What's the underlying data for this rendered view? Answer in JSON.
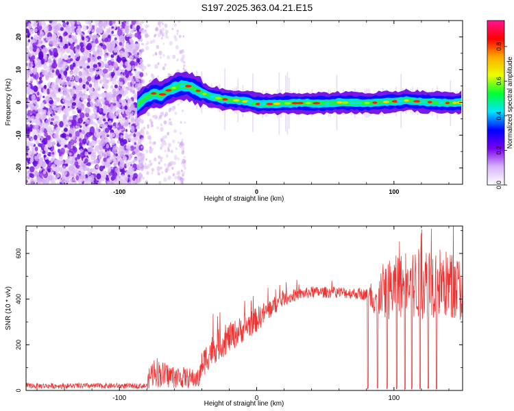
{
  "title": "S197.2025.363.04.21.E15",
  "chart_data": [
    {
      "type": "heatmap",
      "name": "spectrogram",
      "xlabel": "Height of straight line (km)",
      "ylabel": "Frequency (Hz)",
      "xlim": [
        -168,
        150
      ],
      "ylim": [
        -25,
        25
      ],
      "xticks": [
        -100,
        0,
        100
      ],
      "xtick_labels": [
        "-100",
        "0",
        "100"
      ],
      "yticks": [
        -20,
        -10,
        0,
        10,
        20
      ],
      "ytick_labels": [
        "-20",
        "-10",
        "0",
        "10",
        "20"
      ],
      "ridge": {
        "x": [
          -87,
          -82,
          -78,
          -74,
          -70,
          -65,
          -60,
          -55,
          -50,
          -45,
          -40,
          -35,
          -30,
          -25,
          -20,
          -15,
          -10,
          -5,
          0,
          10,
          20,
          30,
          40,
          50,
          60,
          70,
          80,
          90,
          100,
          110,
          120,
          130,
          140,
          150
        ],
        "y": [
          -1,
          1,
          2,
          3,
          2,
          3.5,
          4.5,
          5,
          5,
          4,
          3,
          2,
          1.5,
          1,
          0.8,
          0.6,
          0.4,
          0.1,
          -0.5,
          -0.5,
          -0.3,
          -0.2,
          -0.2,
          -0.3,
          0,
          -0.2,
          -0.2,
          0,
          0.3,
          0.6,
          0.2,
          0,
          -0.2,
          0
        ]
      },
      "noise_region": [
        -168,
        -85
      ],
      "colorbar": {
        "label": "Normalized spectral amplitude",
        "ticks": [
          0.0,
          0.2,
          0.4,
          0.6,
          0.8
        ],
        "tick_labels": [
          "0.0",
          "0.2",
          "0.4",
          "0.6",
          "0.8"
        ],
        "range": [
          0,
          0.95
        ],
        "colors": [
          "#ffffff",
          "#d8b4f8",
          "#7a00f0",
          "#0000ff",
          "#00e5ff",
          "#00ff33",
          "#eaff00",
          "#ffaa00",
          "#ff0000",
          "#ff1493"
        ]
      }
    },
    {
      "type": "line",
      "name": "snr",
      "xlabel": "Height of straight line (km)",
      "ylabel": "SNR (10 * v/v)",
      "xlim": [
        -168,
        150
      ],
      "ylim": [
        0,
        720
      ],
      "xticks": [
        -100,
        0,
        100
      ],
      "xtick_labels": [
        "-100",
        "0",
        "100"
      ],
      "yticks": [
        0,
        200,
        400,
        600
      ],
      "ytick_labels": [
        "0",
        "200",
        "400",
        "600"
      ],
      "color": "#ee3333",
      "envelope": {
        "x": [
          -168,
          -80,
          -78,
          -74,
          -70,
          -60,
          -50,
          -42,
          -40,
          -35,
          -30,
          -20,
          -10,
          0,
          10,
          20,
          30,
          40,
          50,
          60,
          70,
          80,
          83,
          90,
          100,
          110,
          120,
          130,
          140,
          150
        ],
        "y": [
          20,
          20,
          60,
          90,
          70,
          60,
          55,
          50,
          110,
          160,
          190,
          230,
          270,
          310,
          360,
          400,
          420,
          430,
          430,
          430,
          425,
          420,
          400,
          430,
          450,
          460,
          470,
          480,
          460,
          440
        ]
      },
      "spread": [
        12,
        12,
        55,
        70,
        60,
        50,
        45,
        40,
        60,
        70,
        70,
        65,
        60,
        55,
        45,
        30,
        25,
        25,
        25,
        25,
        25,
        25,
        60,
        120,
        140,
        150,
        160,
        160,
        150,
        140
      ],
      "dropouts_x": [
        81,
        88,
        95,
        102,
        108,
        113,
        119,
        125,
        131
      ]
    }
  ]
}
